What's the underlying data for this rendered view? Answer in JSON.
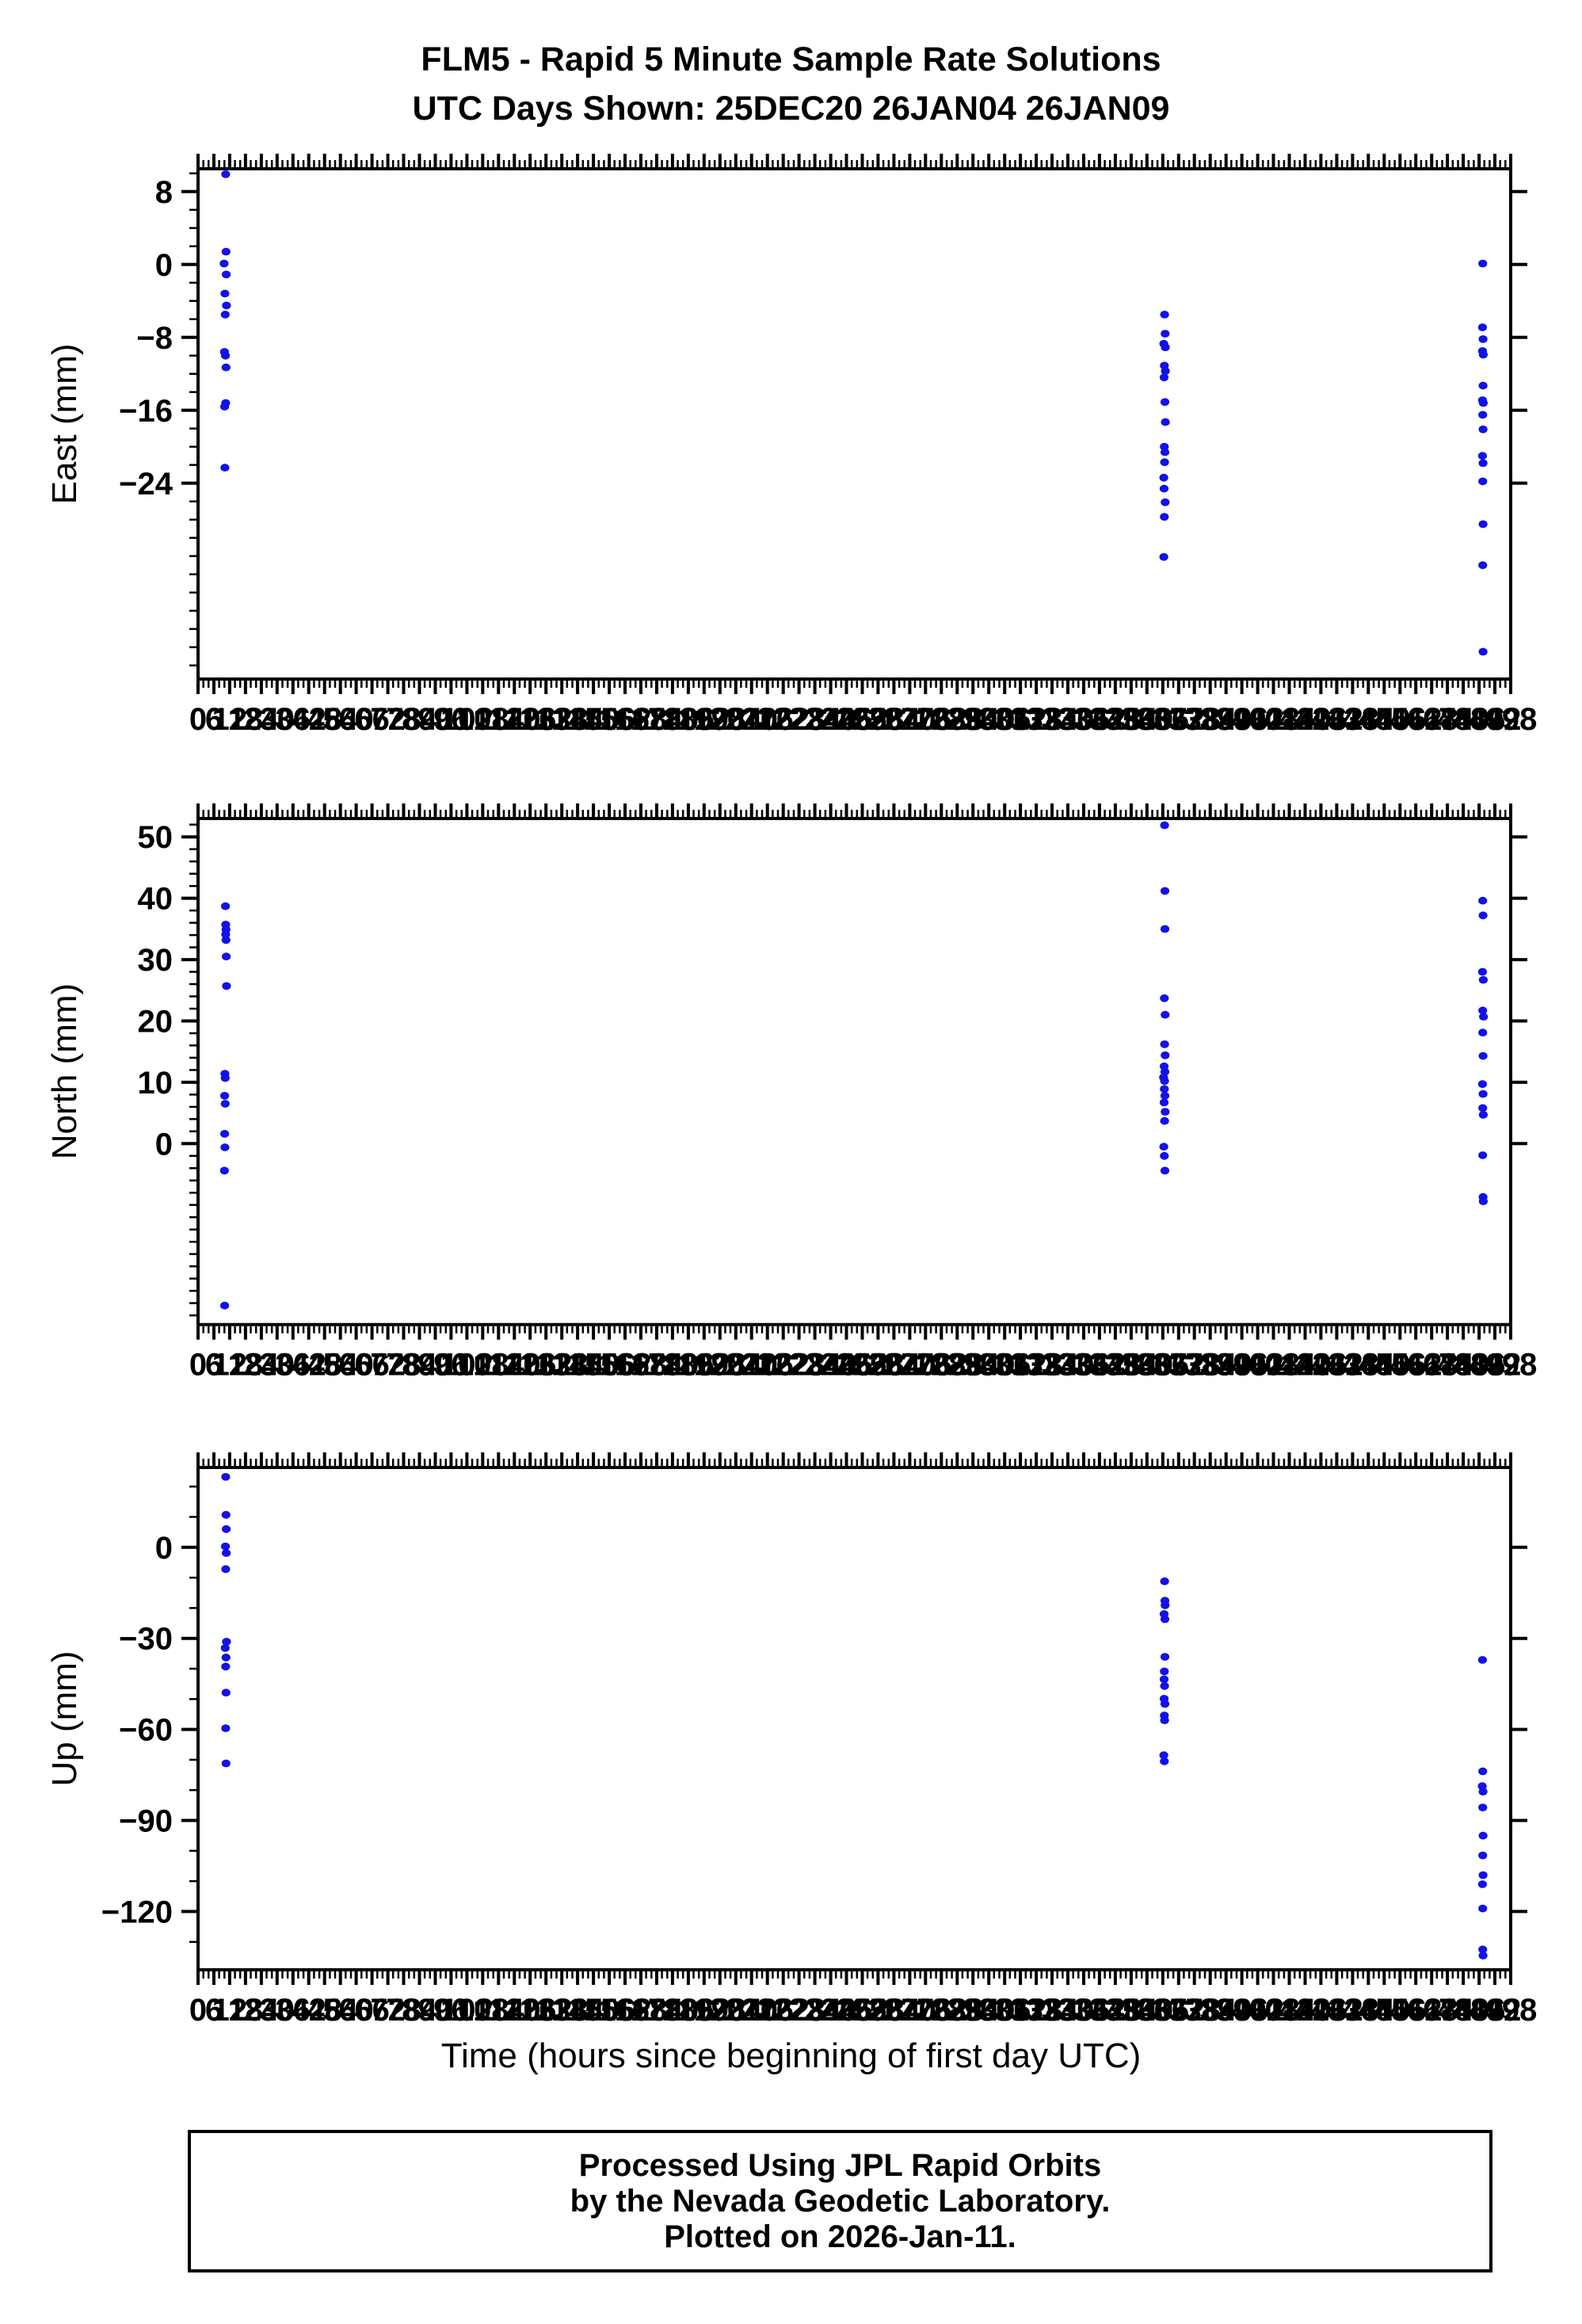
{
  "title": {
    "line1": "FLM5 - Rapid 5 Minute Sample Rate Solutions",
    "line2": "UTC Days Shown:  25DEC20 26JAN04 26JAN09"
  },
  "footer": {
    "line1": "Processed Using JPL Rapid Orbits",
    "line2": "by the Nevada Geodetic Laboratory.",
    "line3": "Plotted on 2026-Jan-11."
  },
  "chart_data": {
    "type": "scatter",
    "title": "FLM5 - Rapid 5 Minute Sample Rate Solutions",
    "subtitle": "UTC Days Shown:  25DEC20 26JAN04 26JAN09",
    "xlabel": "Time (hours since beginning of first day UTC)",
    "point_color": "#1212e8",
    "frame_color": "#000000",
    "x_axis": {
      "min": 0,
      "max": 498,
      "label_step": 6,
      "major_tick_step": 6,
      "minor_tick_step": 2,
      "grid": false
    },
    "plots": [
      {
        "name": "east",
        "ylabel": "East (mm)",
        "ymin": -45.5,
        "ymax": 10.5,
        "yticks": [
          8,
          0,
          -8,
          -16,
          -24
        ],
        "y_minor_step": 2,
        "points": [
          [
            10.5,
            9.9
          ],
          [
            10.6,
            1.4
          ],
          [
            9.9,
            0.1
          ],
          [
            10.7,
            -1.1
          ],
          [
            10.2,
            -3.2
          ],
          [
            10.8,
            -4.5
          ],
          [
            10.3,
            -5.5
          ],
          [
            10.0,
            -9.6
          ],
          [
            10.4,
            -10.0
          ],
          [
            10.6,
            -11.3
          ],
          [
            10.5,
            -15.2
          ],
          [
            10.1,
            -15.6
          ],
          [
            10.2,
            -22.3
          ],
          [
            366.7,
            -5.5
          ],
          [
            366.9,
            -7.6
          ],
          [
            366.4,
            -8.7
          ],
          [
            367.0,
            -9.1
          ],
          [
            366.6,
            -11.1
          ],
          [
            367.0,
            -11.7
          ],
          [
            366.5,
            -12.4
          ],
          [
            366.8,
            -15.1
          ],
          [
            367.0,
            -17.3
          ],
          [
            366.6,
            -20.0
          ],
          [
            366.8,
            -20.6
          ],
          [
            366.7,
            -21.7
          ],
          [
            366.4,
            -23.4
          ],
          [
            366.5,
            -24.6
          ],
          [
            366.9,
            -26.1
          ],
          [
            366.6,
            -27.7
          ],
          [
            366.4,
            -32.1
          ],
          [
            487.4,
            0.1
          ],
          [
            487.3,
            -6.9
          ],
          [
            487.5,
            -8.2
          ],
          [
            487.3,
            -9.5
          ],
          [
            487.6,
            -9.9
          ],
          [
            487.5,
            -13.3
          ],
          [
            487.3,
            -14.9
          ],
          [
            487.6,
            -15.2
          ],
          [
            487.4,
            -16.5
          ],
          [
            487.5,
            -18.1
          ],
          [
            487.3,
            -21.0
          ],
          [
            487.5,
            -21.8
          ],
          [
            487.4,
            -23.8
          ],
          [
            487.5,
            -28.5
          ],
          [
            487.4,
            -33.0
          ],
          [
            487.5,
            -42.5
          ]
        ]
      },
      {
        "name": "north",
        "ylabel": "North (mm)",
        "ymin": -29.5,
        "ymax": 53.0,
        "yticks": [
          50,
          40,
          30,
          20,
          10,
          0
        ],
        "y_minor_step": 2,
        "points": [
          [
            10.4,
            38.7
          ],
          [
            10.5,
            35.7
          ],
          [
            10.6,
            34.9
          ],
          [
            10.5,
            34.1
          ],
          [
            10.6,
            33.2
          ],
          [
            10.7,
            30.5
          ],
          [
            10.8,
            25.7
          ],
          [
            10.2,
            11.4
          ],
          [
            10.3,
            10.7
          ],
          [
            10.1,
            7.8
          ],
          [
            10.3,
            6.5
          ],
          [
            10.1,
            1.6
          ],
          [
            10.2,
            -0.6
          ],
          [
            10.0,
            -4.4
          ],
          [
            10.1,
            -26.4
          ],
          [
            366.7,
            51.9
          ],
          [
            366.8,
            41.2
          ],
          [
            366.8,
            35.0
          ],
          [
            366.6,
            23.7
          ],
          [
            366.9,
            21.0
          ],
          [
            366.7,
            16.2
          ],
          [
            366.9,
            14.4
          ],
          [
            366.5,
            12.6
          ],
          [
            366.8,
            11.7
          ],
          [
            366.3,
            10.8
          ],
          [
            366.7,
            10.2
          ],
          [
            366.6,
            8.9
          ],
          [
            366.8,
            7.8
          ],
          [
            366.5,
            6.7
          ],
          [
            366.9,
            5.2
          ],
          [
            366.7,
            3.7
          ],
          [
            366.4,
            -0.5
          ],
          [
            366.6,
            -2.0
          ],
          [
            366.8,
            -4.4
          ],
          [
            487.4,
            39.6
          ],
          [
            487.5,
            37.2
          ],
          [
            487.3,
            28.0
          ],
          [
            487.6,
            26.7
          ],
          [
            487.4,
            21.7
          ],
          [
            487.7,
            20.7
          ],
          [
            487.4,
            18.1
          ],
          [
            487.5,
            14.3
          ],
          [
            487.3,
            9.7
          ],
          [
            487.5,
            8.1
          ],
          [
            487.4,
            5.8
          ],
          [
            487.6,
            4.7
          ],
          [
            487.4,
            -1.9
          ],
          [
            487.5,
            -8.7
          ],
          [
            487.6,
            -9.4
          ]
        ]
      },
      {
        "name": "up",
        "ylabel": "Up (mm)",
        "ymin": -139.2,
        "ymax": 26.3,
        "yticks": [
          0,
          -30,
          -60,
          -90,
          -120
        ],
        "y_minor_step": 10,
        "points": [
          [
            10.5,
            23.2
          ],
          [
            10.6,
            10.7
          ],
          [
            10.7,
            6.0
          ],
          [
            10.4,
            0.3
          ],
          [
            10.7,
            -1.9
          ],
          [
            10.5,
            -7.2
          ],
          [
            10.8,
            -31.1
          ],
          [
            10.3,
            -33.2
          ],
          [
            10.6,
            -36.3
          ],
          [
            10.5,
            -39.3
          ],
          [
            10.6,
            -47.9
          ],
          [
            10.5,
            -59.6
          ],
          [
            10.6,
            -71.2
          ],
          [
            366.7,
            -11.2
          ],
          [
            366.8,
            -17.6
          ],
          [
            366.9,
            -19.1
          ],
          [
            366.5,
            -22.0
          ],
          [
            366.8,
            -23.7
          ],
          [
            366.8,
            -36.1
          ],
          [
            366.6,
            -40.9
          ],
          [
            366.5,
            -43.5
          ],
          [
            366.7,
            -45.7
          ],
          [
            366.5,
            -49.9
          ],
          [
            366.8,
            -51.6
          ],
          [
            366.6,
            -55.4
          ],
          [
            366.7,
            -57.0
          ],
          [
            366.4,
            -68.5
          ],
          [
            366.6,
            -70.5
          ],
          [
            487.3,
            -37.1
          ],
          [
            487.4,
            -73.8
          ],
          [
            487.2,
            -78.7
          ],
          [
            487.5,
            -80.5
          ],
          [
            487.4,
            -85.7
          ],
          [
            487.5,
            -95.0
          ],
          [
            487.4,
            -101.5
          ],
          [
            487.5,
            -108.0
          ],
          [
            487.3,
            -111.0
          ],
          [
            487.4,
            -119.0
          ],
          [
            487.4,
            -132.5
          ],
          [
            487.5,
            -134.5
          ]
        ]
      }
    ]
  }
}
